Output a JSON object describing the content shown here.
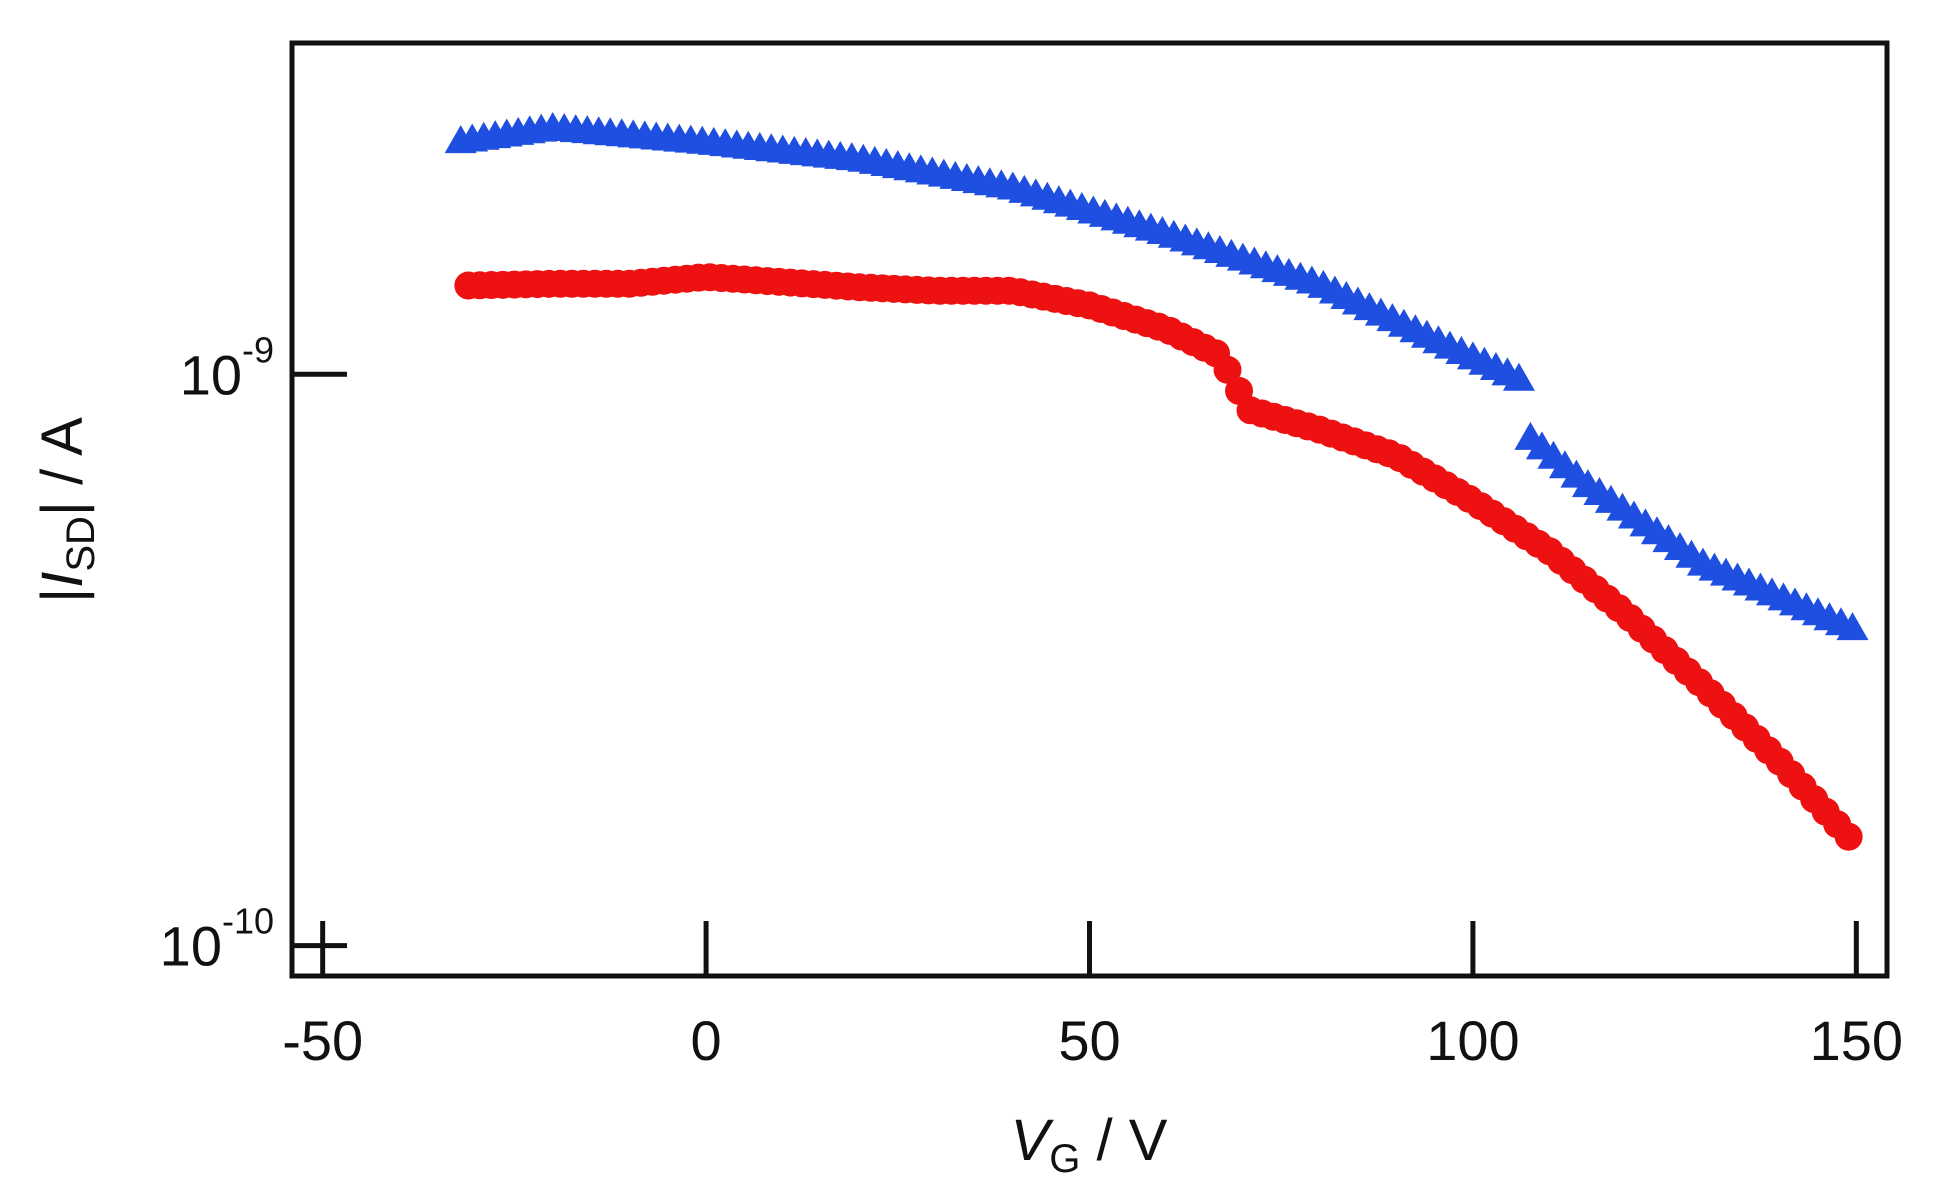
{
  "chart_data": {
    "type": "scatter",
    "title": "",
    "xlabel": {
      "var": "V",
      "sub": "G",
      "unit": " / V"
    },
    "ylabel": {
      "pre": "|",
      "var": "I",
      "sub": "SD",
      "post": "| / A"
    },
    "xlim": [
      -54,
      154
    ],
    "ylim": [
      8.85e-11,
      3.8e-09
    ],
    "yscale": "log",
    "grid": false,
    "legend": "none",
    "x_ticks": [
      {
        "value": -50,
        "label": "-50"
      },
      {
        "value": 0,
        "label": "0"
      },
      {
        "value": 50,
        "label": "50"
      },
      {
        "value": 100,
        "label": "100"
      },
      {
        "value": 150,
        "label": "150"
      }
    ],
    "y_ticks": [
      {
        "value": 1e-10,
        "base": "10",
        "exp": "-10"
      },
      {
        "value": 1e-09,
        "base": "10",
        "exp": "-9"
      }
    ],
    "series": [
      {
        "name": "triangles",
        "marker": "triangle",
        "color": "#1f4fe0",
        "knots": [
          [
            -32,
            2.58e-09
          ],
          [
            -20,
            2.72e-09
          ],
          [
            0,
            2.57e-09
          ],
          [
            20,
            2.4e-09
          ],
          [
            40,
            2.14e-09
          ],
          [
            60,
            1.78e-09
          ],
          [
            80,
            1.45e-09
          ],
          [
            95,
            1.16e-09
          ],
          [
            106,
            9.9e-10
          ],
          [
            107,
            7.9e-10
          ],
          [
            115,
            6.45e-10
          ],
          [
            130,
            4.7e-10
          ],
          [
            150,
            3.6e-10
          ]
        ]
      },
      {
        "name": "circles",
        "marker": "circle",
        "color": "#ee1111",
        "knots": [
          [
            -31,
            1.43e-09
          ],
          [
            -20,
            1.44e-09
          ],
          [
            -10,
            1.44e-09
          ],
          [
            0,
            1.48e-09
          ],
          [
            10,
            1.45e-09
          ],
          [
            20,
            1.42e-09
          ],
          [
            30,
            1.4e-09
          ],
          [
            40,
            1.4e-09
          ],
          [
            50,
            1.32e-09
          ],
          [
            60,
            1.2e-09
          ],
          [
            67,
            1.08e-09
          ],
          [
            69,
            9.6e-10
          ],
          [
            71,
            8.65e-10
          ],
          [
            80,
            8e-10
          ],
          [
            90,
            7.2e-10
          ],
          [
            100,
            6e-10
          ],
          [
            110,
            4.9e-10
          ],
          [
            120,
            3.8e-10
          ],
          [
            130,
            2.85e-10
          ],
          [
            140,
            2.1e-10
          ],
          [
            150,
            1.5e-10
          ]
        ]
      }
    ]
  }
}
